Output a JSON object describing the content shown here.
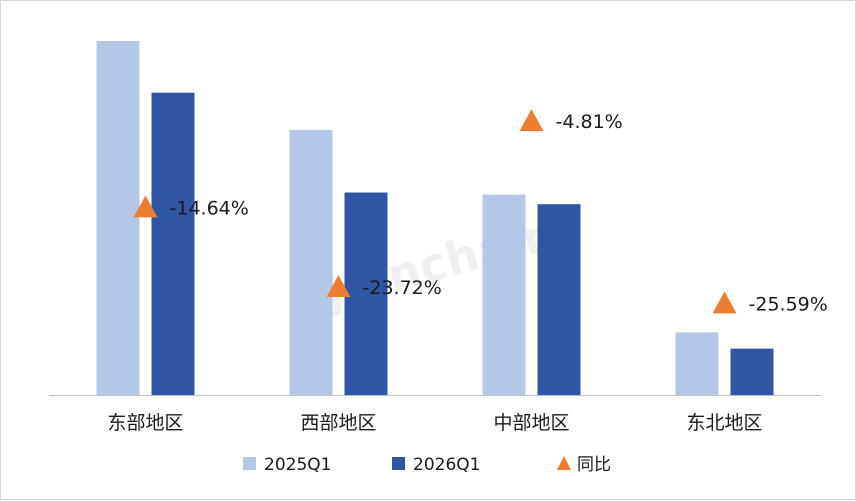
{
  "watermark": "Joinchain",
  "colors": {
    "series_2025q1": "#b4c7e7",
    "series_2026q1": "#2f55a4",
    "yoy_marker": "#ed7d31",
    "axis": "#bfbfbf"
  },
  "chart_data": {
    "type": "bar",
    "categories": [
      "东部地区",
      "西部地区",
      "中部地区",
      "东北地区"
    ],
    "series": [
      {
        "name": "2025Q1",
        "values": [
          100,
          74.9,
          56.6,
          17.7
        ]
      },
      {
        "name": "2026Q1",
        "values": [
          85.4,
          57.2,
          53.9,
          13.1
        ]
      }
    ],
    "yoy": {
      "name": "同比",
      "values": [
        -14.64,
        -23.72,
        -4.81,
        -25.59
      ],
      "labels": [
        "-14.64%",
        "-23.72%",
        "-4.81%",
        "-25.59%"
      ]
    },
    "ylim": [
      0,
      100
    ],
    "yoy_lim": [
      -30,
      0
    ],
    "grid": false,
    "legend": "bottom",
    "y_axis_visible": false
  }
}
